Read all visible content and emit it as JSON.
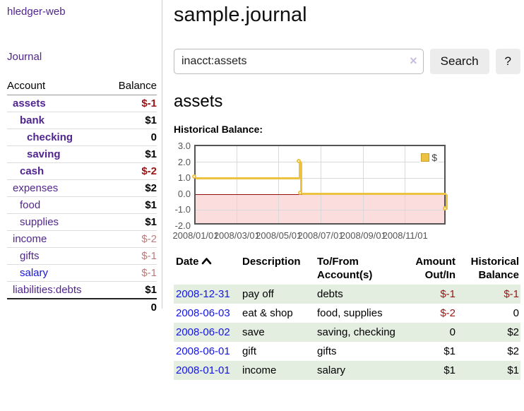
{
  "sidebar": {
    "brand": "hledger-web",
    "journal_label": "Journal",
    "accounts_table": {
      "col_account": "Account",
      "col_balance": "Balance",
      "rows": [
        {
          "name": "assets",
          "balance": "$-1",
          "depth": 0,
          "bold": true,
          "blue": false,
          "balance_style": "negstrong"
        },
        {
          "name": "bank",
          "balance": "$1",
          "depth": 1,
          "bold": true,
          "blue": false,
          "balance_style": "pos"
        },
        {
          "name": "checking",
          "balance": "0",
          "depth": 2,
          "bold": true,
          "blue": false,
          "balance_style": "pos"
        },
        {
          "name": "saving",
          "balance": "$1",
          "depth": 2,
          "bold": true,
          "blue": false,
          "balance_style": "pos"
        },
        {
          "name": "cash",
          "balance": "$-2",
          "depth": 1,
          "bold": true,
          "blue": false,
          "balance_style": "negstrong"
        },
        {
          "name": "expenses",
          "balance": "$2",
          "depth": 0,
          "bold": false,
          "blue": false,
          "balance_style": "pos"
        },
        {
          "name": "food",
          "balance": "$1",
          "depth": 1,
          "bold": false,
          "blue": false,
          "balance_style": "pos"
        },
        {
          "name": "supplies",
          "balance": "$1",
          "depth": 1,
          "bold": false,
          "blue": false,
          "balance_style": "pos"
        },
        {
          "name": "income",
          "balance": "$-2",
          "depth": 0,
          "bold": false,
          "blue": false,
          "balance_style": "negsoft"
        },
        {
          "name": "gifts",
          "balance": "$-1",
          "depth": 1,
          "bold": false,
          "blue": false,
          "balance_style": "negsoft"
        },
        {
          "name": "salary",
          "balance": "$-1",
          "depth": 1,
          "bold": false,
          "blue": true,
          "balance_style": "negsoft"
        },
        {
          "name": "liabilities:debts",
          "balance": "$1",
          "depth": 0,
          "bold": false,
          "blue": false,
          "balance_style": "pos"
        }
      ],
      "total": "0"
    }
  },
  "header": {
    "title": "sample.journal"
  },
  "search": {
    "query": "inacct:assets",
    "clear_icon": "×",
    "search_label": "Search",
    "help_label": "?"
  },
  "account_page": {
    "heading": "assets",
    "chart_label": "Historical Balance:"
  },
  "chart_data": {
    "type": "line",
    "step": true,
    "title": "Historical Balance",
    "legend": {
      "label": "$",
      "color": "#edc240",
      "position": "top-right"
    },
    "x_start": "2008-01-01",
    "x_days_span": 366,
    "ylim": [
      -2,
      3
    ],
    "yticks": [
      "3.0",
      "2.0",
      "1.0",
      "0.0",
      "-1.0",
      "-2.0"
    ],
    "xticks": [
      "2008/01/01",
      "2008/03/01",
      "2008/05/01",
      "2008/07/01",
      "2008/09/01",
      "2008/11/01"
    ],
    "grid": true,
    "negative_region_color": "#fbdddd",
    "zero_line_color": "#8f0e0e",
    "series": [
      {
        "name": "$",
        "color": "#edc240",
        "points": [
          {
            "date": "2008-01-01",
            "balance": 1
          },
          {
            "date": "2008-06-01",
            "balance": 2
          },
          {
            "date": "2008-06-03",
            "balance": 0
          },
          {
            "date": "2008-12-31",
            "balance": -1
          }
        ]
      }
    ]
  },
  "register_table": {
    "headers": {
      "date": "Date",
      "description": "Description",
      "accounts": "To/From Account(s)",
      "amount": "Amount Out/In",
      "balance": "Historical Balance"
    },
    "rows": [
      {
        "date": "2008-12-31",
        "description": "pay off",
        "accounts": "debts",
        "amount": "$-1",
        "balance": "$-1",
        "amount_neg": true,
        "balance_neg": true,
        "stripe": true
      },
      {
        "date": "2008-06-03",
        "description": "eat & shop",
        "accounts": "food, supplies",
        "amount": "$-2",
        "balance": "0",
        "amount_neg": true,
        "balance_neg": false,
        "stripe": false
      },
      {
        "date": "2008-06-02",
        "description": "save",
        "accounts": "saving, checking",
        "amount": "0",
        "balance": "$2",
        "amount_neg": false,
        "balance_neg": false,
        "stripe": true
      },
      {
        "date": "2008-06-01",
        "description": "gift",
        "accounts": "gifts",
        "amount": "$1",
        "balance": "$2",
        "amount_neg": false,
        "balance_neg": false,
        "stripe": false
      },
      {
        "date": "2008-01-01",
        "description": "income",
        "accounts": "salary",
        "amount": "$1",
        "balance": "$1",
        "amount_neg": false,
        "balance_neg": false,
        "stripe": true
      }
    ]
  },
  "colors": {
    "link_purple": "#51258f",
    "link_blue": "#1414e6",
    "neg_strong": "#941616",
    "neg_soft": "#bd7c7c",
    "stripe_green": "#e3eee0",
    "series_gold": "#edc240",
    "negative_region": "#fbdddd",
    "zero_line": "#8f0e0e"
  }
}
